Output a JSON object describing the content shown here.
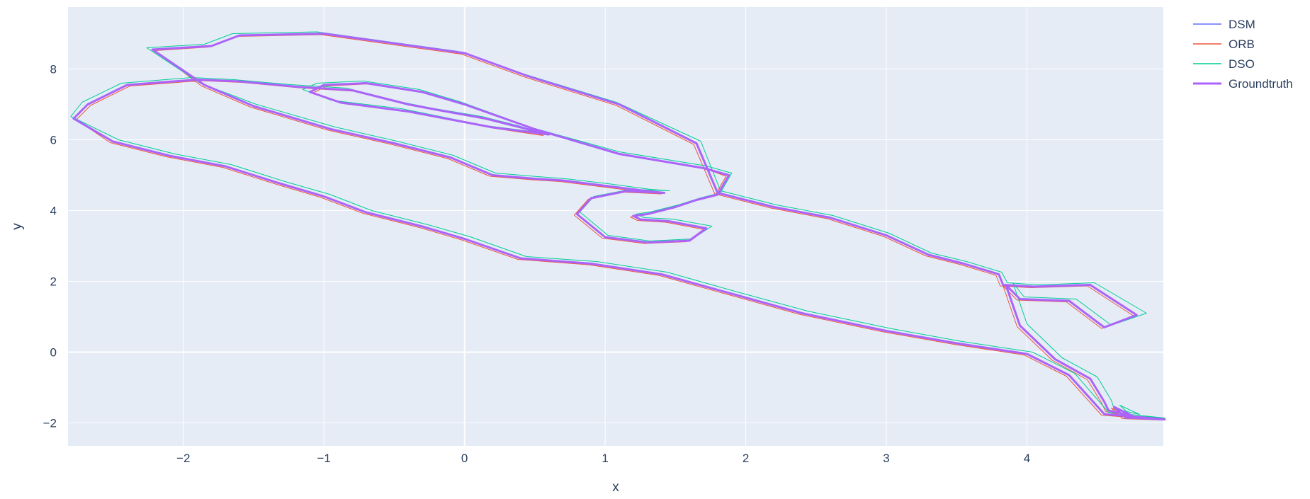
{
  "chart_data": {
    "type": "line",
    "xlabel": "x",
    "ylabel": "y",
    "xlim": [
      -2.82,
      4.97
    ],
    "ylim": [
      -2.65,
      9.75
    ],
    "x_ticks": [
      -2,
      -1,
      0,
      1,
      2,
      3,
      4
    ],
    "y_ticks": [
      -2,
      0,
      2,
      4,
      6,
      8
    ],
    "x_tick_labels": [
      "−2",
      "−1",
      "0",
      "1",
      "2",
      "3",
      "4"
    ],
    "y_tick_labels": [
      "−2",
      "0",
      "2",
      "4",
      "6",
      "8"
    ],
    "grid": true,
    "legend_position": "right",
    "colors": {
      "plot_bg": "#E5ECF6",
      "grid": "#ffffff",
      "text": "#2a3f5f"
    },
    "series": [
      {
        "name": "DSM",
        "color": "#636EFA",
        "x": [
          0.58,
          0.2,
          -0.4,
          -0.88,
          -1.1,
          -1.0,
          -0.7,
          -0.3,
          0.0,
          0.5,
          1.1,
          1.7,
          1.88,
          1.8,
          1.65,
          1.5,
          1.3,
          1.2,
          1.25,
          1.45,
          1.72,
          1.6,
          1.3,
          1.0,
          0.8,
          0.9,
          1.15,
          1.42,
          1.3,
          1.0,
          0.7,
          0.5,
          0.2,
          -0.1,
          -0.5,
          -0.95,
          -1.5,
          -1.85,
          -2.22,
          -1.8,
          -1.6,
          -1.0,
          0.0,
          0.45,
          1.1,
          1.65,
          1.8,
          2.2,
          2.6,
          3.0,
          3.3,
          3.55,
          3.8,
          3.83,
          4.05,
          4.45,
          4.78,
          4.55,
          4.3,
          3.95,
          3.85,
          3.95,
          4.2,
          4.45,
          4.55,
          4.58,
          4.75,
          4.62,
          4.7,
          4.98,
          4.55,
          4.3,
          4.0,
          3.5,
          3.0,
          2.4,
          1.9,
          1.4,
          0.9,
          0.4,
          0.0,
          -0.3,
          -0.7,
          -1.0,
          -1.3,
          -1.7,
          -2.1,
          -2.5,
          -2.78,
          -2.68,
          -2.4,
          -1.9,
          -1.6,
          -1.2,
          -0.8,
          -0.4,
          -0.2,
          0.15,
          0.4,
          0.58
        ],
        "y": [
          6.15,
          6.35,
          6.8,
          7.05,
          7.35,
          7.55,
          7.6,
          7.35,
          7.0,
          6.3,
          5.6,
          5.2,
          5.0,
          4.45,
          4.3,
          4.1,
          3.9,
          3.85,
          3.75,
          3.7,
          3.5,
          3.15,
          3.1,
          3.25,
          3.9,
          4.35,
          4.55,
          4.5,
          4.55,
          4.7,
          4.85,
          4.9,
          5.0,
          5.5,
          5.9,
          6.3,
          6.95,
          7.55,
          8.55,
          8.65,
          8.95,
          9.0,
          8.45,
          7.8,
          7.0,
          5.9,
          4.5,
          4.1,
          3.8,
          3.3,
          2.75,
          2.5,
          2.2,
          1.9,
          1.85,
          1.9,
          1.05,
          0.7,
          1.45,
          1.5,
          1.9,
          0.75,
          -0.2,
          -0.75,
          -1.4,
          -1.65,
          -1.8,
          -1.55,
          -1.85,
          -1.9,
          -1.75,
          -0.65,
          -0.05,
          0.25,
          0.6,
          1.1,
          1.65,
          2.2,
          2.5,
          2.65,
          3.2,
          3.55,
          3.95,
          4.4,
          4.75,
          5.25,
          5.55,
          5.95,
          6.6,
          7.0,
          7.55,
          7.7,
          7.65,
          7.5,
          7.4,
          7.0,
          6.85,
          6.6,
          6.35,
          6.15
        ]
      },
      {
        "name": "ORB",
        "color": "#EF553B",
        "x": [
          0.56,
          0.22,
          -0.38,
          -0.86,
          -1.08,
          -0.98,
          -0.68,
          -0.28,
          0.02,
          0.52,
          1.12,
          1.72,
          1.86,
          1.78,
          1.63,
          1.48,
          1.28,
          1.18,
          1.23,
          1.43,
          1.7,
          1.58,
          1.28,
          0.98,
          0.78,
          0.88,
          1.13,
          1.4,
          1.28,
          0.98,
          0.68,
          0.48,
          0.18,
          -0.12,
          -0.52,
          -0.97,
          -1.52,
          -1.87,
          -2.2,
          -1.82,
          -1.62,
          -1.02,
          -0.02,
          0.43,
          1.08,
          1.63,
          1.78,
          2.18,
          2.58,
          2.98,
          3.28,
          3.53,
          3.78,
          3.81,
          4.03,
          4.43,
          4.76,
          4.53,
          4.28,
          3.93,
          3.83,
          3.93,
          4.18,
          4.43,
          4.53,
          4.56,
          4.73,
          4.6,
          4.68,
          4.97,
          4.53,
          4.28,
          3.98,
          3.48,
          2.98,
          2.38,
          1.88,
          1.38,
          0.88,
          0.38,
          -0.02,
          -0.32,
          -0.72,
          -1.02,
          -1.32,
          -1.72,
          -2.12,
          -2.52,
          -2.76,
          -2.66,
          -2.38,
          -1.88,
          -1.58,
          -1.18,
          -0.78,
          -0.38,
          -0.18,
          0.17,
          0.42,
          0.56
        ],
        "y": [
          6.12,
          6.32,
          6.78,
          7.02,
          7.32,
          7.52,
          7.58,
          7.32,
          6.97,
          6.27,
          5.57,
          5.17,
          4.97,
          4.42,
          4.27,
          4.07,
          3.87,
          3.82,
          3.72,
          3.67,
          3.47,
          3.12,
          3.07,
          3.22,
          3.87,
          4.32,
          4.52,
          4.47,
          4.52,
          4.67,
          4.82,
          4.87,
          4.97,
          5.47,
          5.87,
          6.27,
          6.92,
          7.52,
          8.52,
          8.62,
          8.92,
          8.97,
          8.42,
          7.77,
          6.97,
          5.87,
          4.47,
          4.07,
          3.77,
          3.27,
          2.72,
          2.47,
          2.17,
          1.87,
          1.82,
          1.87,
          1.02,
          0.67,
          1.42,
          1.47,
          1.87,
          0.72,
          -0.23,
          -0.78,
          -1.43,
          -1.68,
          -1.83,
          -1.58,
          -1.88,
          -1.92,
          -1.78,
          -0.68,
          -0.08,
          0.22,
          0.57,
          1.07,
          1.62,
          2.17,
          2.47,
          2.62,
          3.17,
          3.52,
          3.92,
          4.37,
          4.72,
          5.22,
          5.52,
          5.92,
          6.57,
          6.97,
          7.52,
          7.67,
          7.62,
          7.47,
          7.37,
          6.97,
          6.82,
          6.57,
          6.32,
          6.12
        ]
      },
      {
        "name": "DSO",
        "color": "#00CC96",
        "x": [
          0.55,
          0.15,
          -0.45,
          -0.95,
          -1.15,
          -1.05,
          -0.72,
          -0.32,
          -0.02,
          0.48,
          1.1,
          1.72,
          1.9,
          1.82,
          1.68,
          1.52,
          1.32,
          1.22,
          1.28,
          1.48,
          1.76,
          1.62,
          1.32,
          1.02,
          0.82,
          0.92,
          1.18,
          1.46,
          1.32,
          1.02,
          0.72,
          0.52,
          0.22,
          -0.08,
          -0.48,
          -0.92,
          -1.48,
          -1.88,
          -2.26,
          -1.85,
          -1.65,
          -1.05,
          -0.05,
          0.42,
          1.08,
          1.68,
          1.82,
          2.22,
          2.62,
          3.02,
          3.32,
          3.57,
          3.82,
          3.86,
          4.08,
          4.48,
          4.85,
          4.6,
          4.35,
          3.98,
          3.9,
          4.0,
          4.25,
          4.5,
          4.6,
          4.62,
          4.8,
          4.66,
          4.74,
          4.98,
          4.58,
          4.34,
          4.04,
          3.54,
          3.04,
          2.44,
          1.94,
          1.44,
          0.94,
          0.44,
          0.04,
          -0.26,
          -0.66,
          -0.96,
          -1.26,
          -1.66,
          -2.06,
          -2.46,
          -2.8,
          -2.72,
          -2.44,
          -1.94,
          -1.64,
          -1.24,
          -0.84,
          -0.44,
          -0.24,
          0.12,
          0.38,
          0.55
        ],
        "y": [
          6.2,
          6.4,
          6.88,
          7.12,
          7.42,
          7.6,
          7.66,
          7.42,
          7.06,
          6.34,
          5.66,
          5.26,
          5.06,
          4.5,
          4.36,
          4.16,
          3.96,
          3.9,
          3.8,
          3.76,
          3.56,
          3.2,
          3.14,
          3.3,
          3.96,
          4.4,
          4.6,
          4.56,
          4.6,
          4.76,
          4.9,
          4.96,
          5.06,
          5.56,
          5.96,
          6.36,
          7.0,
          7.6,
          8.6,
          8.7,
          9.0,
          9.05,
          8.5,
          7.86,
          7.06,
          5.96,
          4.56,
          4.16,
          3.86,
          3.36,
          2.8,
          2.56,
          2.26,
          1.96,
          1.9,
          1.96,
          1.1,
          0.76,
          1.5,
          1.56,
          1.96,
          0.8,
          -0.16,
          -0.7,
          -1.36,
          -1.6,
          -1.76,
          -1.5,
          -1.8,
          -1.86,
          -1.7,
          -0.6,
          0.0,
          0.3,
          0.66,
          1.16,
          1.7,
          2.26,
          2.56,
          2.7,
          3.26,
          3.6,
          4.0,
          4.46,
          4.8,
          5.3,
          5.6,
          6.0,
          6.66,
          7.06,
          7.6,
          7.76,
          7.7,
          7.56,
          7.46,
          7.06,
          6.9,
          6.66,
          6.4,
          6.2
        ]
      },
      {
        "name": "Groundtruth",
        "color": "#AB63FA",
        "x": [
          0.6,
          0.2,
          -0.4,
          -0.88,
          -1.1,
          -1.0,
          -0.7,
          -0.3,
          0.0,
          0.5,
          1.1,
          1.7,
          1.88,
          1.8,
          1.65,
          1.5,
          1.3,
          1.2,
          1.25,
          1.45,
          1.72,
          1.6,
          1.3,
          1.0,
          0.8,
          0.9,
          1.15,
          1.42,
          1.3,
          1.0,
          0.7,
          0.5,
          0.2,
          -0.1,
          -0.5,
          -0.95,
          -1.5,
          -1.85,
          -2.22,
          -1.8,
          -1.6,
          -1.0,
          0.0,
          0.45,
          1.1,
          1.65,
          1.8,
          2.2,
          2.6,
          3.0,
          3.3,
          3.55,
          3.8,
          3.83,
          4.05,
          4.45,
          4.78,
          4.55,
          4.3,
          3.95,
          3.85,
          3.95,
          4.2,
          4.45,
          4.55,
          4.58,
          4.75,
          4.62,
          4.7,
          4.98,
          4.55,
          4.3,
          4.0,
          3.5,
          3.0,
          2.4,
          1.9,
          1.4,
          0.9,
          0.4,
          0.0,
          -0.3,
          -0.7,
          -1.0,
          -1.3,
          -1.7,
          -2.1,
          -2.5,
          -2.78,
          -2.68,
          -2.4,
          -1.9,
          -1.6,
          -1.2,
          -0.8,
          -0.4,
          -0.2,
          0.15,
          0.4,
          0.6
        ],
        "y": [
          6.15,
          6.35,
          6.8,
          7.05,
          7.35,
          7.55,
          7.6,
          7.35,
          7.0,
          6.3,
          5.6,
          5.2,
          5.0,
          4.45,
          4.3,
          4.1,
          3.9,
          3.85,
          3.75,
          3.7,
          3.5,
          3.15,
          3.1,
          3.25,
          3.9,
          4.35,
          4.55,
          4.5,
          4.55,
          4.7,
          4.85,
          4.9,
          5.0,
          5.5,
          5.9,
          6.3,
          6.95,
          7.55,
          8.55,
          8.65,
          8.95,
          9.0,
          8.45,
          7.8,
          7.0,
          5.9,
          4.5,
          4.1,
          3.8,
          3.3,
          2.75,
          2.5,
          2.2,
          1.9,
          1.85,
          1.9,
          1.05,
          0.7,
          1.45,
          1.5,
          1.9,
          0.75,
          -0.2,
          -0.75,
          -1.4,
          -1.65,
          -1.8,
          -1.55,
          -1.85,
          -1.9,
          -1.75,
          -0.65,
          -0.05,
          0.25,
          0.6,
          1.1,
          1.65,
          2.2,
          2.5,
          2.65,
          3.2,
          3.55,
          3.95,
          4.4,
          4.75,
          5.25,
          5.55,
          5.95,
          6.6,
          7.0,
          7.55,
          7.7,
          7.65,
          7.5,
          7.4,
          7.0,
          6.85,
          6.6,
          6.35,
          6.15
        ]
      }
    ]
  }
}
